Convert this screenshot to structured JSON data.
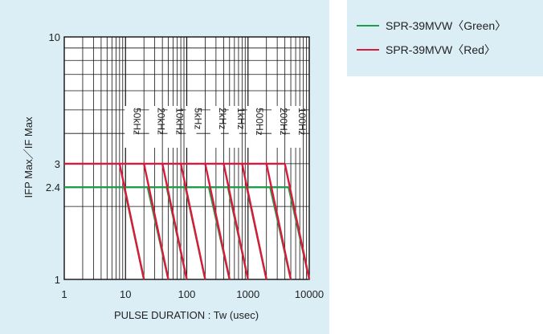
{
  "chart_data": {
    "type": "line",
    "title": "",
    "xlabel": "PULSE  DURATION : Tw  (usec)",
    "ylabel": "IFP Max／IF Max",
    "x_scale": "log",
    "y_scale": "log",
    "xlim": [
      1,
      10000
    ],
    "ylim": [
      1,
      10
    ],
    "x_ticks": [
      {
        "value": 1,
        "label": "1"
      },
      {
        "value": 10,
        "label": "10"
      },
      {
        "value": 100,
        "label": "100"
      },
      {
        "value": 1000,
        "label": "1000"
      },
      {
        "value": 10000,
        "label": "10000"
      }
    ],
    "y_ticks": [
      {
        "value": 1,
        "label": "1"
      },
      {
        "value": 2.4,
        "label": "2.4"
      },
      {
        "value": 3,
        "label": "3"
      },
      {
        "value": 10,
        "label": "10"
      }
    ],
    "grid": true,
    "legend_position": "outside-top-right",
    "frequencies": [
      {
        "label": "50kHz",
        "x": 10
      },
      {
        "label": "20kHz",
        "x": 25
      },
      {
        "label": "10kHz",
        "x": 50
      },
      {
        "label": "5kHz",
        "x": 100
      },
      {
        "label": "2kHz",
        "x": 250
      },
      {
        "label": "1kHz",
        "x": 500
      },
      {
        "label": "500Hz",
        "x": 1000
      },
      {
        "label": "200Hz",
        "x": 2500
      },
      {
        "label": "100Hz",
        "x": 5000
      }
    ],
    "series": [
      {
        "name": "SPR-39MVW〈Green〉",
        "color": "#1e9e4a",
        "plateau": 2.4,
        "curves": [
          {
            "knee": 9.5,
            "end": 20
          },
          {
            "knee": 23,
            "end": 50
          },
          {
            "knee": 47,
            "end": 100
          },
          {
            "knee": 95,
            "end": 200
          },
          {
            "knee": 230,
            "end": 500
          },
          {
            "knee": 470,
            "end": 1000
          },
          {
            "knee": 950,
            "end": 2000
          },
          {
            "knee": 2300,
            "end": 5000
          },
          {
            "knee": 4600,
            "end": 10000
          }
        ]
      },
      {
        "name": "SPR-39MVW〈Red〉",
        "color": "#d81b3a",
        "plateau": 3,
        "curves": [
          {
            "knee": 8,
            "end": 20
          },
          {
            "knee": 20,
            "end": 50
          },
          {
            "knee": 40,
            "end": 100
          },
          {
            "knee": 80,
            "end": 200
          },
          {
            "knee": 200,
            "end": 500
          },
          {
            "knee": 400,
            "end": 1000
          },
          {
            "knee": 800,
            "end": 2000
          },
          {
            "knee": 2000,
            "end": 5000
          },
          {
            "knee": 4000,
            "end": 10000
          }
        ]
      }
    ]
  }
}
